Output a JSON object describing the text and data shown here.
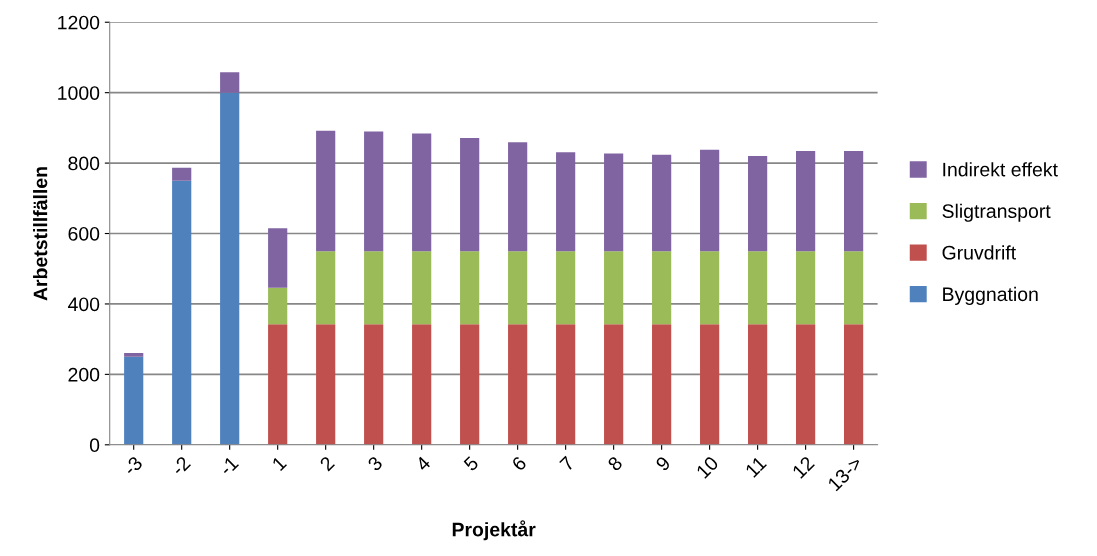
{
  "chart_data": {
    "type": "bar",
    "stacked": true,
    "xlabel": "Projektår",
    "ylabel": "Arbetstillfällen",
    "categories": [
      "-3",
      "-2",
      "-1",
      "1",
      "2",
      "3",
      "4",
      "5",
      "6",
      "7",
      "8",
      "9",
      "10",
      "11",
      "12",
      "13->"
    ],
    "series": [
      {
        "name": "Byggnation",
        "color": "#4f81bd",
        "values": [
          250,
          750,
          1000,
          null,
          null,
          null,
          null,
          null,
          null,
          null,
          null,
          null,
          null,
          null,
          null,
          null
        ]
      },
      {
        "name": "Gruvdrift",
        "color": "#c0504d",
        "values": [
          null,
          null,
          null,
          342,
          342,
          342,
          342,
          342,
          342,
          342,
          342,
          342,
          342,
          342,
          342,
          342
        ]
      },
      {
        "name": "Sligtransport",
        "color": "#9bbb59",
        "values": [
          null,
          null,
          null,
          104,
          208,
          208,
          208,
          208,
          208,
          208,
          208,
          208,
          208,
          208,
          208,
          208
        ]
      },
      {
        "name": "Indirekt effekt",
        "color": "#8064a2",
        "values": [
          11,
          37,
          58,
          169,
          342,
          340,
          334,
          321,
          309,
          281,
          277,
          274,
          288,
          270,
          284,
          284
        ]
      }
    ],
    "ylim": [
      0,
      1200
    ],
    "yticks": [
      0,
      200,
      400,
      600,
      800,
      1000,
      1200
    ],
    "grid": "y",
    "legend": "right"
  }
}
